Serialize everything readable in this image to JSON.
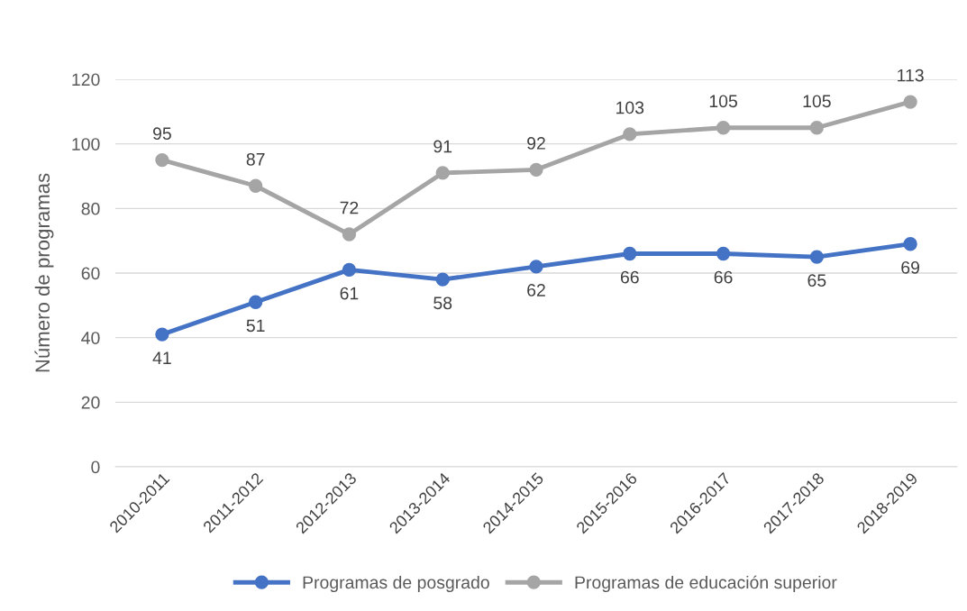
{
  "chart_data": {
    "type": "line",
    "ylabel": "Número de programas",
    "categories": [
      "2010-2011",
      "2011-2012",
      "2012-2013",
      "2013-2014",
      "2014-2015",
      "2015-2016",
      "2016-2017",
      "2017-2018",
      "2018-2019"
    ],
    "series": [
      {
        "name": "Programas de posgrado",
        "color": "#4472c4",
        "values": [
          41,
          51,
          61,
          58,
          62,
          66,
          66,
          65,
          69
        ]
      },
      {
        "name": "Programas de educación superior",
        "color": "#a5a5a5",
        "values": [
          95,
          87,
          72,
          91,
          92,
          103,
          105,
          105,
          113
        ]
      }
    ],
    "ylim": [
      0,
      120
    ],
    "yticks": [
      0,
      20,
      40,
      60,
      80,
      100,
      120
    ],
    "grid": "y",
    "legend": "bottom",
    "marker": "circle",
    "line_style": "solid",
    "data_labels": true
  }
}
